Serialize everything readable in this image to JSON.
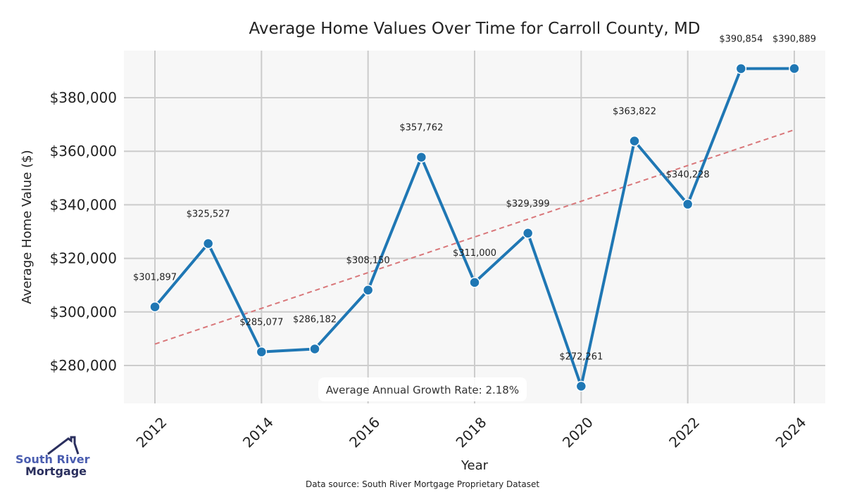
{
  "chart_data": {
    "type": "line",
    "title": "Average Home Values Over Time for Carroll County, MD",
    "xlabel": "Year",
    "ylabel": "Average Home Value ($)",
    "x": [
      2012,
      2013,
      2014,
      2015,
      2016,
      2017,
      2018,
      2019,
      2020,
      2021,
      2022,
      2023,
      2024
    ],
    "values": [
      301897,
      325527,
      285077,
      286182,
      308150,
      357762,
      311000,
      329399,
      272261,
      363822,
      340228,
      390854,
      390889
    ],
    "data_labels": [
      "$301,897",
      "$325,527",
      "$285,077",
      "$286,182",
      "$308,150",
      "$357,762",
      "$311,000",
      "$329,399",
      "$272,261",
      "$363,822",
      "$340,228",
      "$390,854",
      "$390,889"
    ],
    "xticks": [
      "2012",
      "2014",
      "2016",
      "2018",
      "2020",
      "2022",
      "2024"
    ],
    "yticks": [
      280000,
      300000,
      320000,
      340000,
      360000,
      380000
    ],
    "ytick_labels": [
      "$280,000",
      "$300,000",
      "$320,000",
      "$340,000",
      "$360,000",
      "$380,000"
    ],
    "xlim": [
      2011.4,
      2024.6
    ],
    "ylim": [
      266000,
      397000
    ],
    "trend": {
      "start": [
        2012,
        288000
      ],
      "end": [
        2024,
        368000
      ]
    },
    "annotation": "Average Annual Growth Rate: 2.18%",
    "grid": true,
    "colors": {
      "line": "#1f77b4",
      "trend": "#d9777a",
      "plot_bg": "#f7f7f7",
      "grid": "#cccccc"
    }
  },
  "footer": {
    "source": "Data source: South River Mortgage Proprietary Dataset"
  },
  "logo": {
    "line1": "South River",
    "line2": "Mortgage"
  }
}
